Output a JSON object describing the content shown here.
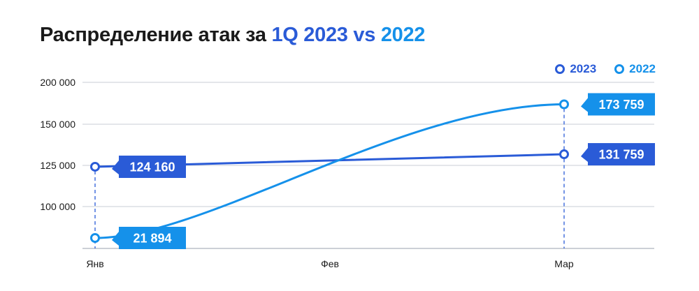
{
  "chart_data": {
    "type": "line",
    "title": {
      "prefix": "Распределение атак за ",
      "highlight_1": "1Q 2023",
      "separator": " vs ",
      "highlight_2": "2022"
    },
    "categories": [
      "Янв",
      "Фев",
      "Мар"
    ],
    "y_tick_labels": [
      "200 000",
      "150 000",
      "125 000",
      "100 000"
    ],
    "grid": true,
    "legend_position": "top-right",
    "series": [
      {
        "name": "2023",
        "color": "#2a5bd7",
        "values": [
          124160,
          null,
          131759
        ],
        "labels": [
          "124 160",
          "",
          "131 759"
        ]
      },
      {
        "name": "2022",
        "color": "#1591ea",
        "values": [
          21894,
          null,
          173759
        ],
        "labels": [
          "21 894",
          "",
          "173 759"
        ]
      }
    ]
  }
}
